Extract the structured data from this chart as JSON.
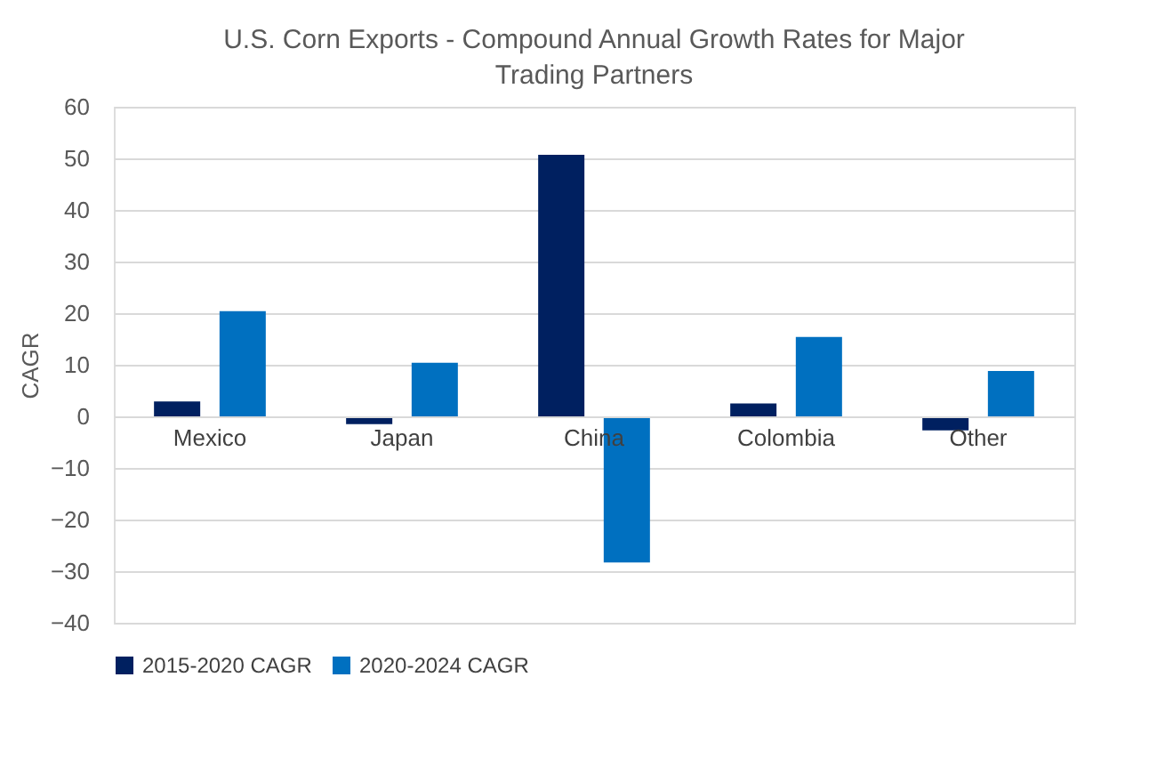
{
  "chart_data": {
    "type": "bar",
    "title": "U.S. Corn Exports - Compound  Annual Growth Rates for Major Trading Partners",
    "ylabel": "CAGR",
    "categories": [
      "Mexico",
      "Japan",
      "China",
      "Colombia",
      "Other"
    ],
    "series": [
      {
        "name": "2015-2020 CAGR",
        "color": "#002060",
        "values": [
          2.9,
          -1.5,
          50.7,
          2.5,
          -2.7
        ]
      },
      {
        "name": "2020-2024 CAGR",
        "color": "#0070c0",
        "values": [
          20.4,
          10.4,
          -28.3,
          15.4,
          8.8
        ]
      }
    ],
    "ylim": [
      -40,
      60
    ],
    "yticks": [
      -40,
      -30,
      -20,
      -10,
      0,
      10,
      20,
      30,
      40,
      50,
      60
    ],
    "grid": "y",
    "legend": "bottom"
  }
}
